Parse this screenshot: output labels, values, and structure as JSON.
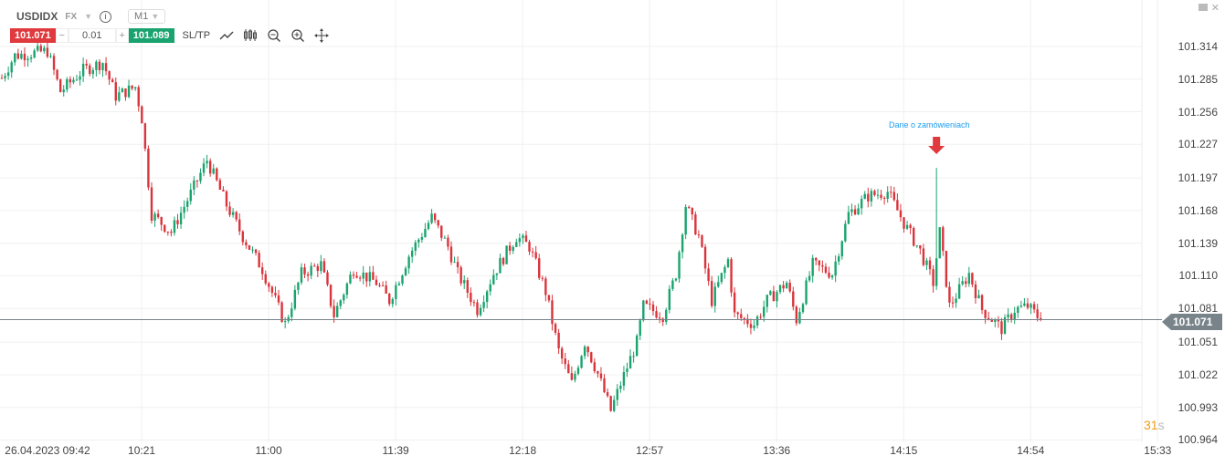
{
  "header": {
    "symbol": "USDIDX",
    "market": "FX",
    "timeframe": "M1",
    "sell_price": "101.071",
    "quantity": "0.01",
    "buy_price": "101.089",
    "sltp_label": "SL/TP",
    "minus": "−",
    "plus": "+"
  },
  "icons": [
    "info-icon",
    "trend-line-icon",
    "candlestick-icon",
    "zoom-out-icon",
    "zoom-in-icon",
    "move-icon",
    "minimize-icon",
    "close-icon"
  ],
  "countdown": {
    "value": "31",
    "unit": "s"
  },
  "annotation": {
    "text": "Dane o zamówieniach",
    "color": "#1a9cf0"
  },
  "colors": {
    "up": "#1aa36f",
    "down": "#d9343b",
    "price_line": "#78838a"
  },
  "chart_data": {
    "type": "candlestick",
    "symbol": "USDIDX",
    "interval_minutes": 1,
    "current_price": "101.071",
    "ylim": [
      100.955,
      101.33
    ],
    "y_ticks": [
      "101.314",
      "101.285",
      "101.256",
      "101.227",
      "101.197",
      "101.168",
      "101.139",
      "101.110",
      "101.081",
      "101.051",
      "101.022",
      "100.993",
      "100.964"
    ],
    "x_ticks": [
      {
        "m": 0,
        "label": "26.04.2023 09:42"
      },
      {
        "m": 39,
        "label": "10:21"
      },
      {
        "m": 78,
        "label": "11:00"
      },
      {
        "m": 117,
        "label": "11:39"
      },
      {
        "m": 156,
        "label": "12:18"
      },
      {
        "m": 195,
        "label": "12:57"
      },
      {
        "m": 234,
        "label": "13:36"
      },
      {
        "m": 273,
        "label": "14:15"
      },
      {
        "m": 312,
        "label": "14:54"
      },
      {
        "m": 351,
        "label": "15:33"
      }
    ],
    "close_path": [
      [
        0,
        101.286
      ],
      [
        4,
        101.306
      ],
      [
        14,
        101.31
      ],
      [
        18,
        101.274
      ],
      [
        25,
        101.293
      ],
      [
        31,
        101.3
      ],
      [
        35,
        101.27
      ],
      [
        41,
        101.278
      ],
      [
        43,
        101.25
      ],
      [
        46,
        101.165
      ],
      [
        52,
        101.149
      ],
      [
        59,
        101.189
      ],
      [
        63,
        101.213
      ],
      [
        69,
        101.173
      ],
      [
        74,
        101.145
      ],
      [
        80,
        101.116
      ],
      [
        87,
        101.067
      ],
      [
        92,
        101.112
      ],
      [
        98,
        101.12
      ],
      [
        102,
        101.075
      ],
      [
        108,
        101.116
      ],
      [
        115,
        101.104
      ],
      [
        119,
        101.088
      ],
      [
        125,
        101.128
      ],
      [
        132,
        101.162
      ],
      [
        137,
        101.136
      ],
      [
        140,
        101.112
      ],
      [
        146,
        101.08
      ],
      [
        151,
        101.112
      ],
      [
        158,
        101.145
      ],
      [
        162,
        101.136
      ],
      [
        167,
        101.096
      ],
      [
        171,
        101.043
      ],
      [
        175,
        101.014
      ],
      [
        179,
        101.051
      ],
      [
        183,
        101.023
      ],
      [
        187,
        100.99
      ],
      [
        190,
        101.014
      ],
      [
        195,
        101.051
      ],
      [
        197,
        101.083
      ],
      [
        203,
        101.075
      ],
      [
        207,
        101.112
      ],
      [
        210,
        101.173
      ],
      [
        214,
        101.145
      ],
      [
        218,
        101.088
      ],
      [
        223,
        101.124
      ],
      [
        225,
        101.075
      ],
      [
        231,
        101.067
      ],
      [
        235,
        101.088
      ],
      [
        241,
        101.104
      ],
      [
        244,
        101.071
      ],
      [
        249,
        101.12
      ],
      [
        255,
        101.112
      ],
      [
        260,
        101.165
      ],
      [
        266,
        101.181
      ],
      [
        272,
        101.185
      ],
      [
        277,
        101.157
      ],
      [
        282,
        101.132
      ],
      [
        286,
        101.104
      ],
      [
        288,
        101.149
      ],
      [
        291,
        101.083
      ],
      [
        297,
        101.112
      ],
      [
        301,
        101.08
      ],
      [
        307,
        101.063
      ],
      [
        311,
        101.08
      ],
      [
        315,
        101.083
      ],
      [
        319,
        101.071
      ]
    ],
    "spike": {
      "m": 287,
      "high": 101.206
    },
    "annotation_m": 287
  }
}
